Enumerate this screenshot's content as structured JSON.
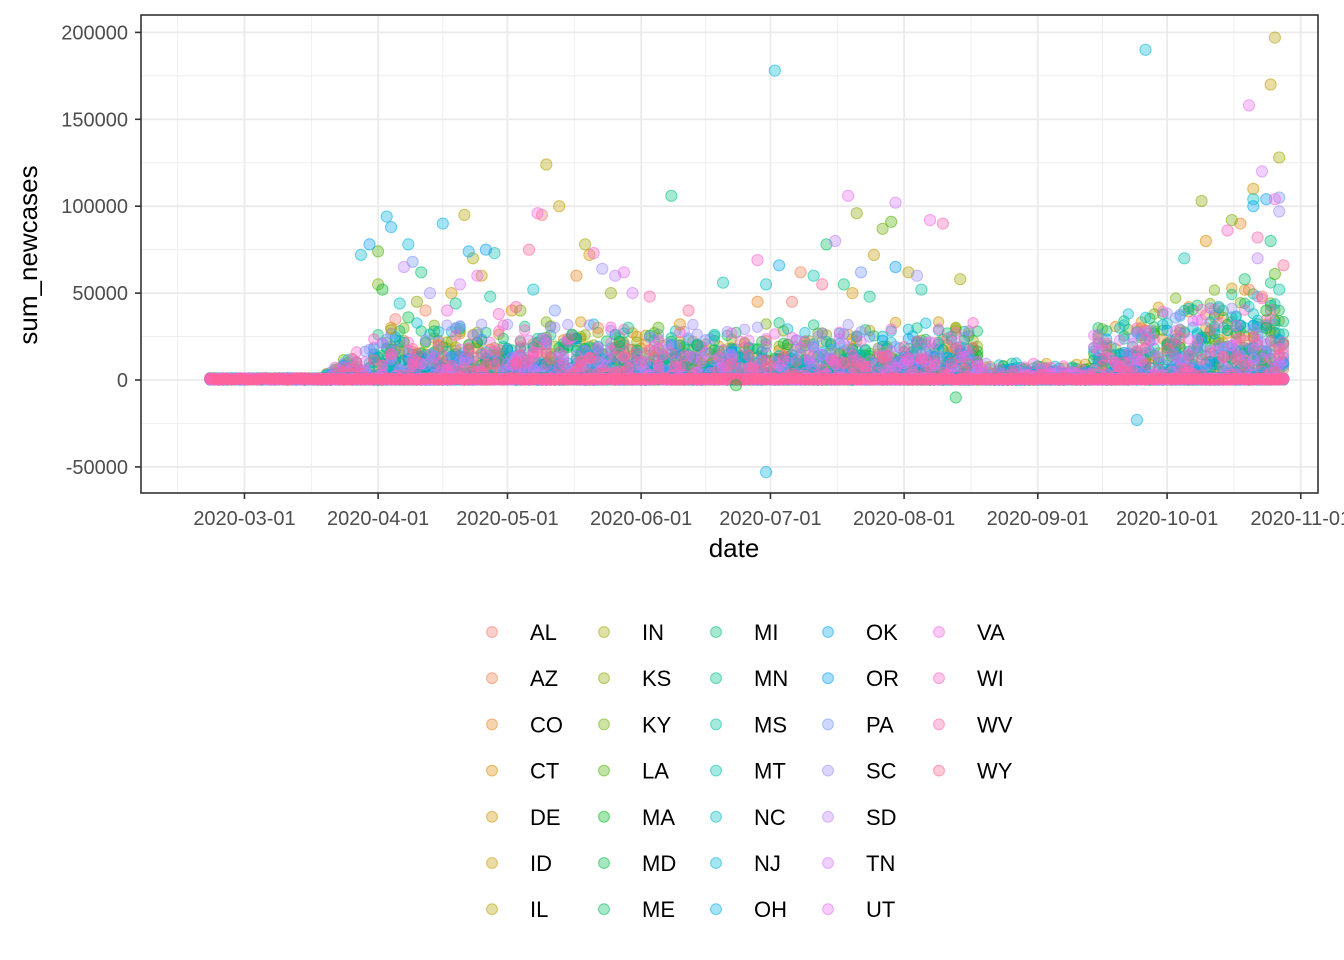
{
  "chart_data": {
    "type": "scatter",
    "xlabel": "date",
    "ylabel": "sum_newcases",
    "xlim": [
      "2020-02-06",
      "2020-11-05"
    ],
    "ylim": [
      -65000,
      210000
    ],
    "x_ticks": [
      "2020-03-01",
      "2020-04-01",
      "2020-05-01",
      "2020-06-01",
      "2020-07-01",
      "2020-08-01",
      "2020-09-01",
      "2020-10-01",
      "2020-11-01"
    ],
    "x_tick_labels": [
      "2020-03-01",
      "2020-04-01",
      "2020-05-01",
      "2020-06-01",
      "2020-07-01",
      "2020-08-01",
      "2020-09-01",
      "2020-10-01",
      "2020-11-01"
    ],
    "y_ticks": [
      -50000,
      0,
      50000,
      100000,
      150000,
      200000
    ],
    "y_tick_labels": [
      "-50000",
      "0",
      "50000",
      "100000",
      "150000",
      "200000"
    ],
    "grid": true,
    "point_opacity": 0.35,
    "legend_position": "bottom",
    "series": [
      {
        "name": "AL",
        "color": "#F8766D",
        "values": [
          [
            "2020-04-05",
            35000
          ],
          [
            "2020-05-09",
            95000
          ],
          [
            "2020-07-06",
            45000
          ],
          [
            "2020-10-23",
            48000
          ]
        ]
      },
      {
        "name": "AZ",
        "color": "#F17E4C",
        "values": [
          [
            "2020-04-12",
            40000
          ],
          [
            "2020-05-22",
            30000
          ],
          [
            "2020-07-08",
            62000
          ],
          [
            "2020-10-20",
            52000
          ]
        ]
      },
      {
        "name": "CO",
        "color": "#E8851E",
        "values": [
          [
            "2020-04-15",
            20000
          ],
          [
            "2020-05-17",
            60000
          ],
          [
            "2020-06-28",
            45000
          ],
          [
            "2020-10-18",
            90000
          ]
        ]
      },
      {
        "name": "CT",
        "color": "#DD8D00",
        "values": [
          [
            "2020-04-04",
            30000
          ],
          [
            "2020-05-02",
            40000
          ],
          [
            "2020-06-10",
            32000
          ],
          [
            "2020-10-10",
            80000
          ]
        ]
      },
      {
        "name": "DE",
        "color": "#D09400",
        "values": [
          [
            "2020-04-18",
            50000
          ],
          [
            "2020-05-20",
            72000
          ],
          [
            "2020-07-20",
            50000
          ],
          [
            "2020-10-21",
            110000
          ]
        ]
      },
      {
        "name": "ID",
        "color": "#C29A00",
        "values": [
          [
            "2020-04-25",
            60000
          ],
          [
            "2020-05-13",
            100000
          ],
          [
            "2020-07-25",
            72000
          ],
          [
            "2020-10-25",
            170000
          ]
        ]
      },
      {
        "name": "IL",
        "color": "#B2A000",
        "values": [
          [
            "2020-04-21",
            95000
          ],
          [
            "2020-05-10",
            124000
          ],
          [
            "2020-08-02",
            62000
          ],
          [
            "2020-10-26",
            197000
          ]
        ]
      },
      {
        "name": "IN",
        "color": "#A1A500",
        "values": [
          [
            "2020-04-23",
            70000
          ],
          [
            "2020-05-19",
            78000
          ],
          [
            "2020-08-14",
            58000
          ],
          [
            "2020-10-27",
            128000
          ]
        ]
      },
      {
        "name": "KS",
        "color": "#8CAA00",
        "values": [
          [
            "2020-04-10",
            45000
          ],
          [
            "2020-05-25",
            50000
          ],
          [
            "2020-07-21",
            96000
          ],
          [
            "2020-10-09",
            103000
          ]
        ]
      },
      {
        "name": "KY",
        "color": "#72AF00",
        "values": [
          [
            "2020-04-01",
            55000
          ],
          [
            "2020-05-04",
            40000
          ],
          [
            "2020-07-27",
            87000
          ],
          [
            "2020-10-16",
            92000
          ]
        ]
      },
      {
        "name": "LA",
        "color": "#4BB300",
        "values": [
          [
            "2020-04-01",
            74000
          ],
          [
            "2020-06-05",
            30000
          ],
          [
            "2020-07-29",
            91000
          ],
          [
            "2020-10-26",
            61000
          ]
        ]
      },
      {
        "name": "MA",
        "color": "#00B81F",
        "values": [
          [
            "2020-04-02",
            52000
          ],
          [
            "2020-05-16",
            26000
          ],
          [
            "2020-06-23",
            -3000
          ],
          [
            "2020-10-24",
            40000
          ]
        ]
      },
      {
        "name": "MD",
        "color": "#00BB45",
        "values": [
          [
            "2020-04-08",
            36000
          ],
          [
            "2020-05-27",
            22000
          ],
          [
            "2020-08-13",
            -10000
          ],
          [
            "2020-10-24",
            30000
          ]
        ]
      },
      {
        "name": "ME",
        "color": "#00BD60",
        "values": [
          [
            "2020-04-14",
            28000
          ],
          [
            "2020-06-14",
            20000
          ],
          [
            "2020-07-14",
            78000
          ],
          [
            "2020-10-19",
            58000
          ]
        ]
      },
      {
        "name": "MI",
        "color": "#00BF77",
        "values": [
          [
            "2020-04-11",
            62000
          ],
          [
            "2020-06-08",
            106000
          ],
          [
            "2020-07-18",
            55000
          ],
          [
            "2020-10-25",
            80000
          ]
        ]
      },
      {
        "name": "MN",
        "color": "#00C08B",
        "values": [
          [
            "2020-04-19",
            44000
          ],
          [
            "2020-05-29",
            30000
          ],
          [
            "2020-07-24",
            48000
          ],
          [
            "2020-10-13",
            42000
          ]
        ]
      },
      {
        "name": "MS",
        "color": "#00C19E",
        "values": [
          [
            "2020-04-27",
            48000
          ],
          [
            "2020-06-18",
            26000
          ],
          [
            "2020-08-05",
            52000
          ],
          [
            "2020-10-27",
            52000
          ]
        ]
      },
      {
        "name": "MT",
        "color": "#00BFB0",
        "values": [
          [
            "2020-04-28",
            73000
          ],
          [
            "2020-06-20",
            56000
          ],
          [
            "2020-07-11",
            60000
          ],
          [
            "2020-10-05",
            70000
          ]
        ]
      },
      {
        "name": "NC",
        "color": "#00BCC2",
        "values": [
          [
            "2020-04-06",
            44000
          ],
          [
            "2020-05-07",
            52000
          ],
          [
            "2020-06-30",
            55000
          ],
          [
            "2020-10-21",
            104000
          ]
        ]
      },
      {
        "name": "NJ",
        "color": "#00B7D3",
        "values": [
          [
            "2020-03-28",
            72000
          ],
          [
            "2020-04-08",
            78000
          ],
          [
            "2020-07-02",
            178000
          ],
          [
            "2020-09-26",
            190000
          ]
        ]
      },
      {
        "name": "OH",
        "color": "#00B0E2",
        "values": [
          [
            "2020-04-03",
            94000
          ],
          [
            "2020-04-16",
            90000
          ],
          [
            "2020-06-30",
            -53000
          ],
          [
            "2020-09-24",
            -23000
          ]
        ]
      },
      {
        "name": "OK",
        "color": "#00A8EE",
        "values": [
          [
            "2020-04-04",
            88000
          ],
          [
            "2020-04-22",
            74000
          ],
          [
            "2020-07-03",
            66000
          ],
          [
            "2020-10-21",
            100000
          ]
        ]
      },
      {
        "name": "OR",
        "color": "#009EF9",
        "values": [
          [
            "2020-03-30",
            78000
          ],
          [
            "2020-04-26",
            75000
          ],
          [
            "2020-07-30",
            65000
          ],
          [
            "2020-10-24",
            104000
          ]
        ]
      },
      {
        "name": "PA",
        "color": "#6F93FF",
        "values": [
          [
            "2020-04-09",
            68000
          ],
          [
            "2020-05-12",
            40000
          ],
          [
            "2020-07-22",
            62000
          ],
          [
            "2020-10-27",
            105000
          ]
        ]
      },
      {
        "name": "SC",
        "color": "#9C8CFF",
        "values": [
          [
            "2020-04-13",
            50000
          ],
          [
            "2020-05-23",
            64000
          ],
          [
            "2020-08-04",
            60000
          ],
          [
            "2020-10-27",
            97000
          ]
        ]
      },
      {
        "name": "SD",
        "color": "#BC81FF",
        "values": [
          [
            "2020-04-07",
            65000
          ],
          [
            "2020-05-26",
            60000
          ],
          [
            "2020-07-16",
            80000
          ],
          [
            "2020-10-22",
            70000
          ]
        ]
      },
      {
        "name": "TN",
        "color": "#D577FF",
        "values": [
          [
            "2020-04-20",
            55000
          ],
          [
            "2020-05-30",
            50000
          ],
          [
            "2020-07-30",
            102000
          ],
          [
            "2020-10-23",
            120000
          ]
        ]
      },
      {
        "name": "UT",
        "color": "#E86EF4",
        "values": [
          [
            "2020-04-24",
            60000
          ],
          [
            "2020-05-28",
            62000
          ],
          [
            "2020-07-19",
            106000
          ],
          [
            "2020-10-20",
            158000
          ]
        ]
      },
      {
        "name": "VA",
        "color": "#F566E0",
        "values": [
          [
            "2020-04-17",
            40000
          ],
          [
            "2020-05-08",
            96000
          ],
          [
            "2020-08-07",
            92000
          ],
          [
            "2020-10-26",
            104000
          ]
        ]
      },
      {
        "name": "WI",
        "color": "#FD62C8",
        "values": [
          [
            "2020-04-29",
            38000
          ],
          [
            "2020-05-21",
            73000
          ],
          [
            "2020-06-28",
            69000
          ],
          [
            "2020-10-15",
            86000
          ]
        ]
      },
      {
        "name": "WV",
        "color": "#FF62AD",
        "values": [
          [
            "2020-05-03",
            42000
          ],
          [
            "2020-06-03",
            48000
          ],
          [
            "2020-08-10",
            90000
          ],
          [
            "2020-10-22",
            82000
          ]
        ]
      },
      {
        "name": "WY",
        "color": "#FF6590",
        "values": [
          [
            "2020-05-06",
            75000
          ],
          [
            "2020-06-12",
            40000
          ],
          [
            "2020-07-13",
            55000
          ],
          [
            "2020-10-28",
            66000
          ]
        ]
      }
    ]
  }
}
